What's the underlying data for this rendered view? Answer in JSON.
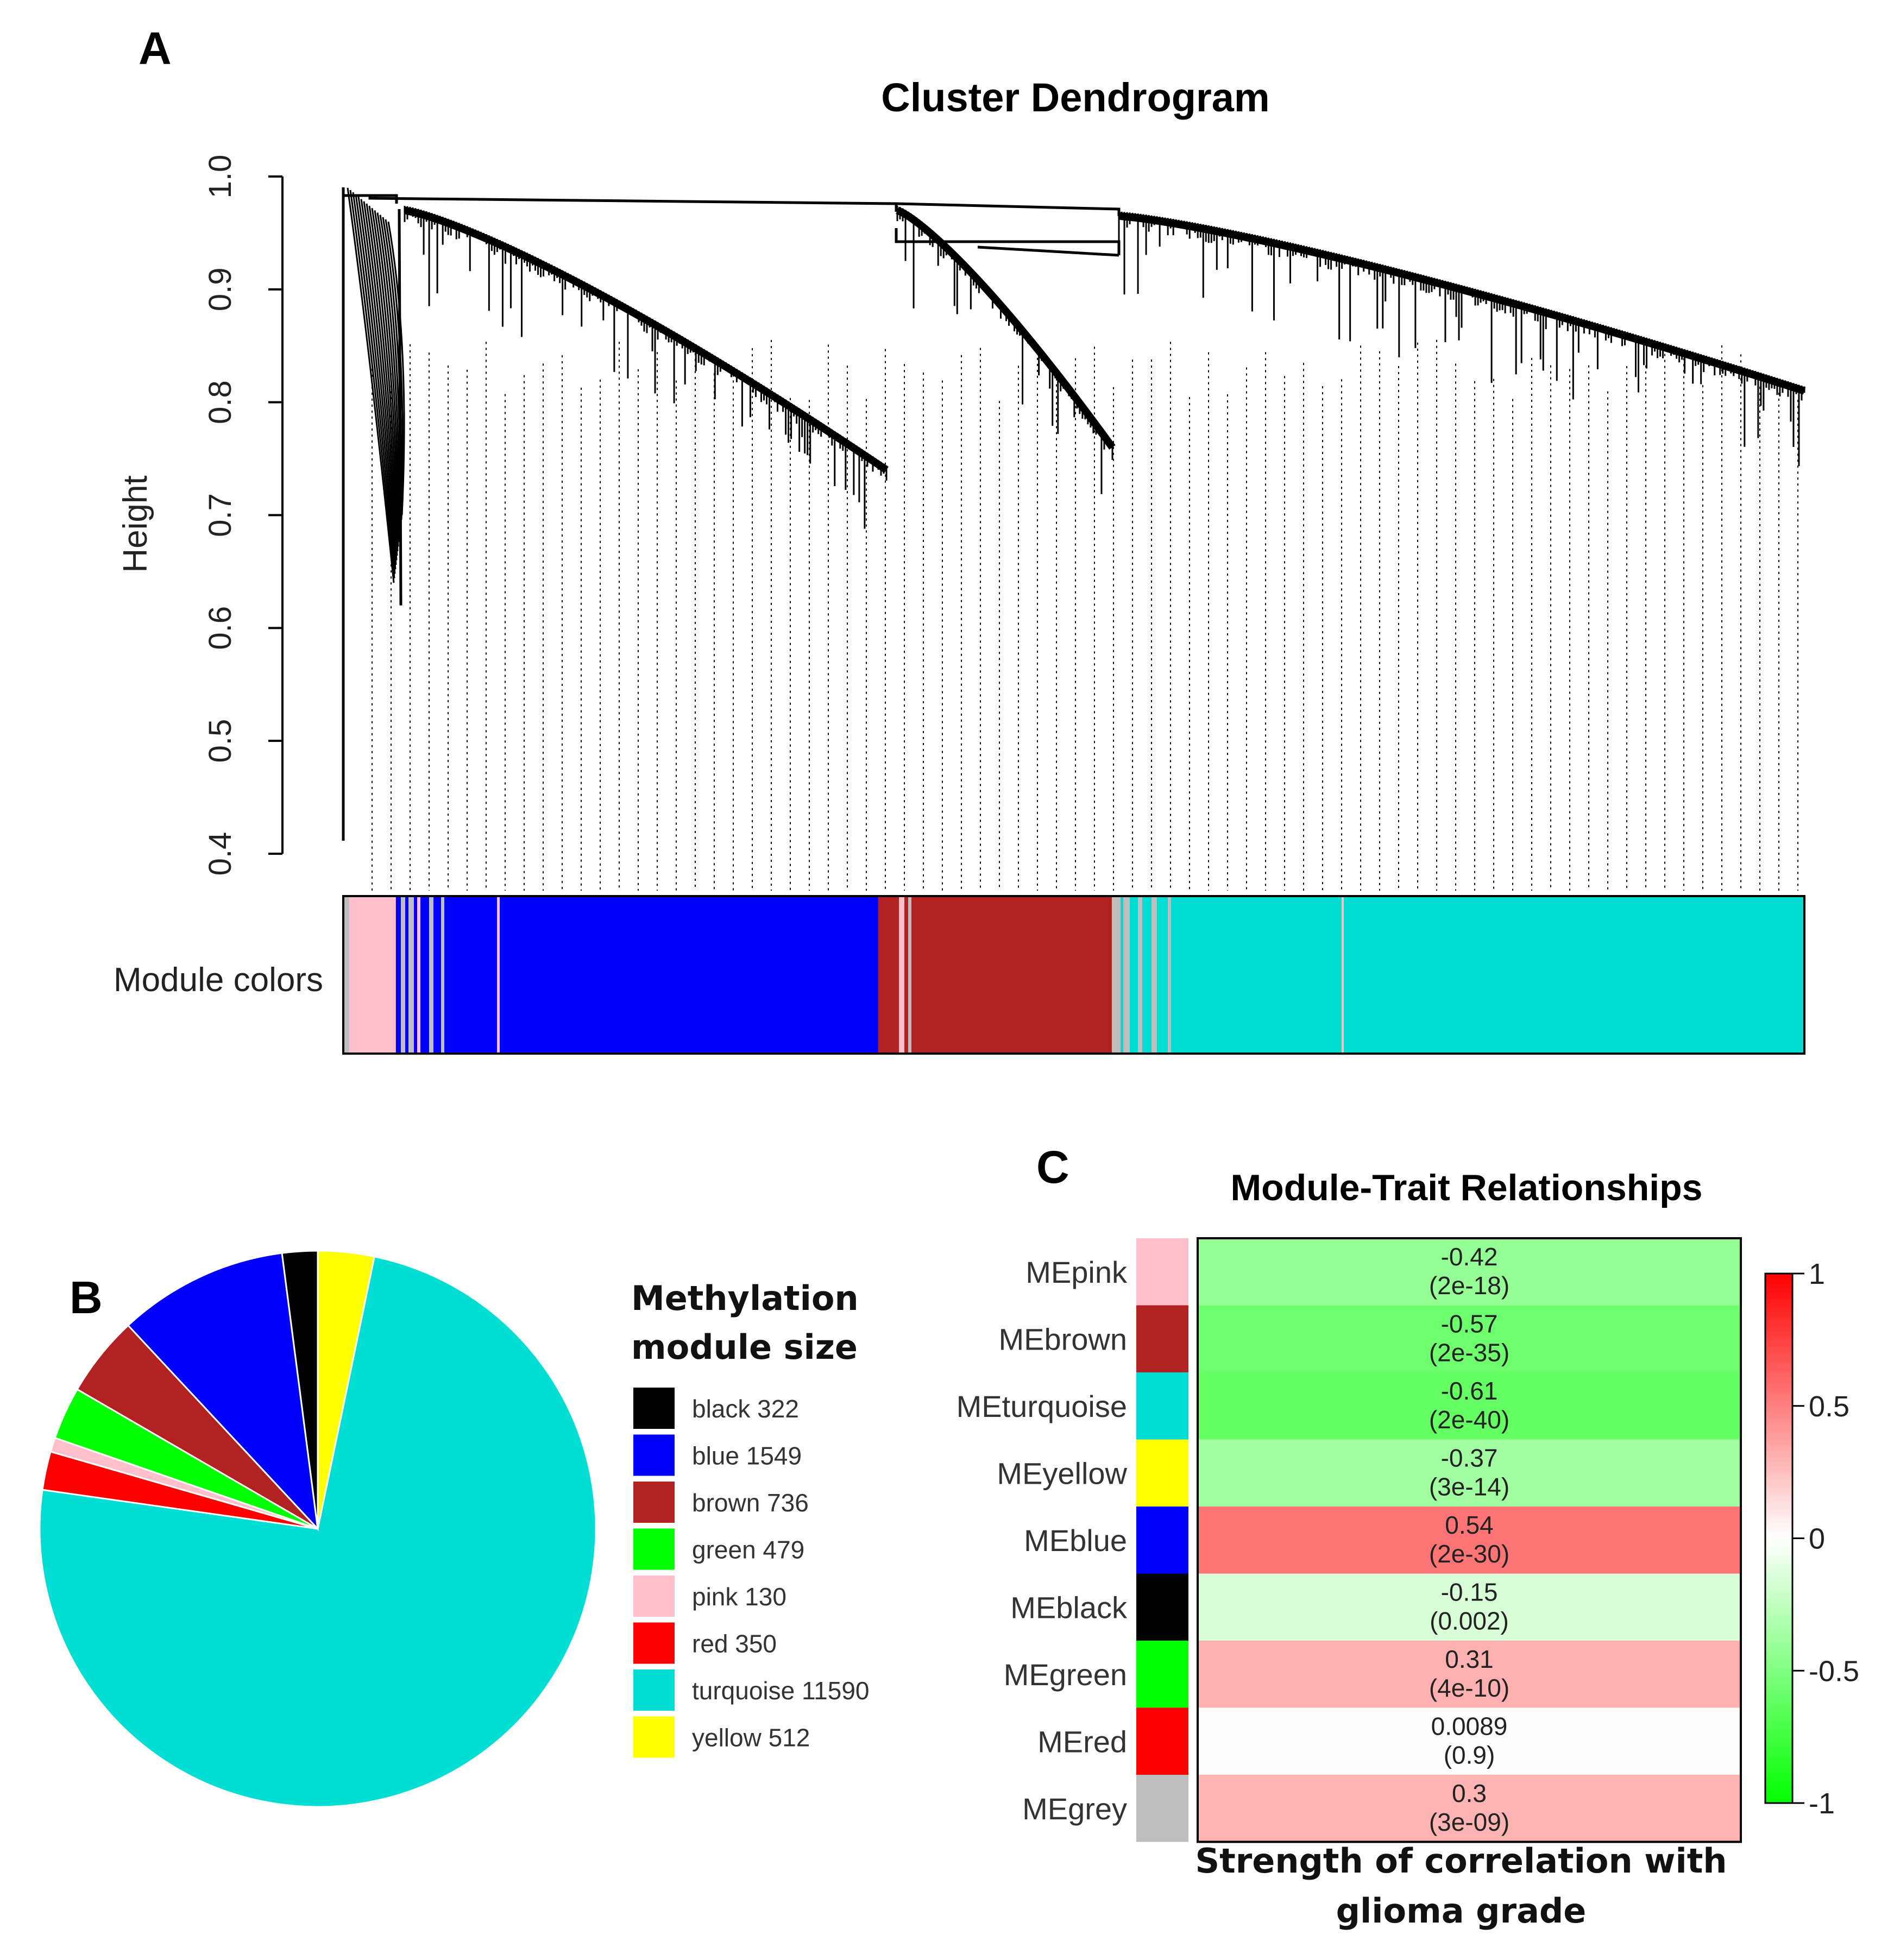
{
  "chart_data": [
    {
      "panel": "A",
      "type": "dendrogram",
      "title": "Cluster Dendrogram",
      "ylabel": "Height",
      "ylim": [
        0.4,
        1.0
      ],
      "yticks": [
        "0.4",
        "0.5",
        "0.6",
        "0.7",
        "0.8",
        "0.9",
        "1.0"
      ],
      "color_bar_label": "Module colors",
      "module_order": [
        {
          "module": "grey",
          "color": "#bebebe",
          "fraction": 0.004
        },
        {
          "module": "pink",
          "color": "#ffc0cb",
          "fraction": 0.032
        },
        {
          "module": "blue",
          "color": "#0000ff",
          "fraction": 0.33
        },
        {
          "module": "brown",
          "color": "#b22222",
          "fraction": 0.16
        },
        {
          "module": "grey",
          "color": "#bebebe",
          "fraction": 0.006
        },
        {
          "module": "turquoise",
          "color": "#00ddd2",
          "fraction": 0.468
        }
      ],
      "branches": [
        {
          "module": "pink",
          "top": 0.99,
          "bottom": 0.64
        },
        {
          "module": "blue",
          "top": 0.97,
          "bottom": 0.74
        },
        {
          "module": "brown",
          "top": 0.97,
          "bottom": 0.76
        },
        {
          "module": "turquoise",
          "top": 0.965,
          "bottom": 0.81
        }
      ]
    },
    {
      "panel": "B",
      "type": "pie",
      "legend_title": [
        "Methylation",
        "module size"
      ],
      "slices": [
        {
          "label": "black 322",
          "module": "black",
          "value": 322,
          "color": "#000000"
        },
        {
          "label": "blue 1549",
          "module": "blue",
          "value": 1549,
          "color": "#0000ff"
        },
        {
          "label": "brown 736",
          "module": "brown",
          "value": 736,
          "color": "#b22222"
        },
        {
          "label": "green 479",
          "module": "green",
          "value": 479,
          "color": "#00ff00"
        },
        {
          "label": "pink 130",
          "module": "pink",
          "value": 130,
          "color": "#ffc0cb"
        },
        {
          "label": "red 350",
          "module": "red",
          "value": 350,
          "color": "#ff0000"
        },
        {
          "label": "turquoise 11590",
          "module": "turquoise",
          "value": 11590,
          "color": "#00ddd2"
        },
        {
          "label": "yellow 512",
          "module": "yellow",
          "value": 512,
          "color": "#ffff00"
        }
      ]
    },
    {
      "panel": "C",
      "type": "heatmap",
      "title": "Module-Trait Relationships",
      "xlabel": [
        "Strength of correlation with",
        "glioma grade"
      ],
      "colorbar": {
        "min": -1,
        "max": 1,
        "ticks": [
          "1",
          "0.5",
          "0",
          "-0.5",
          "-1"
        ]
      },
      "rows": [
        {
          "label": "MEpink",
          "swatch": "#ffc0cb",
          "value": -0.42,
          "value_text": "-0.42",
          "p_text": "(2e-18)"
        },
        {
          "label": "MEbrown",
          "swatch": "#b22222",
          "value": -0.57,
          "value_text": "-0.57",
          "p_text": "(2e-35)"
        },
        {
          "label": "MEturquoise",
          "swatch": "#00ddd2",
          "value": -0.61,
          "value_text": "-0.61",
          "p_text": "(2e-40)"
        },
        {
          "label": "MEyellow",
          "swatch": "#ffff00",
          "value": -0.37,
          "value_text": "-0.37",
          "p_text": "(3e-14)"
        },
        {
          "label": "MEblue",
          "swatch": "#0000ff",
          "value": 0.54,
          "value_text": "0.54",
          "p_text": "(2e-30)"
        },
        {
          "label": "MEblack",
          "swatch": "#000000",
          "value": -0.15,
          "value_text": "-0.15",
          "p_text": "(0.002)"
        },
        {
          "label": "MEgreen",
          "swatch": "#00ff00",
          "value": 0.31,
          "value_text": "0.31",
          "p_text": "(4e-10)"
        },
        {
          "label": "MEred",
          "swatch": "#ff0000",
          "value": 0.0089,
          "value_text": "0.0089",
          "p_text": "(0.9)"
        },
        {
          "label": "MEgrey",
          "swatch": "#bebebe",
          "value": 0.3,
          "value_text": "0.3",
          "p_text": "(3e-09)"
        }
      ]
    }
  ],
  "panel_labels": {
    "a": "A",
    "b": "B",
    "c": "C"
  }
}
